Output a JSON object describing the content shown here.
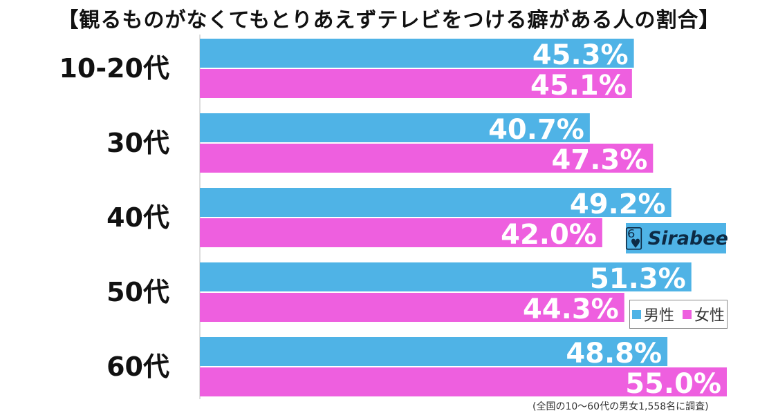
{
  "title": "【観るものがなくてもとりあえずテレビをつける癖がある人の割合】",
  "footnote": "(全国の10～60代の男女1,558名に調査)",
  "logo_text": "Sirabee",
  "colors": {
    "male": "#4fb3e6",
    "female": "#ee5fdf"
  },
  "chart_data": {
    "type": "bar",
    "orientation": "horizontal",
    "title": "【観るものがなくてもとりあえずテレビをつける癖がある人の割合】",
    "categories": [
      "10-20代",
      "30代",
      "40代",
      "50代",
      "60代"
    ],
    "series": [
      {
        "name": "男性",
        "values": [
          45.3,
          40.7,
          49.2,
          51.3,
          48.8
        ],
        "labels": [
          "45.3%",
          "40.7%",
          "49.2%",
          "51.3%",
          "48.8%"
        ]
      },
      {
        "name": "女性",
        "values": [
          45.1,
          47.3,
          42.0,
          44.3,
          55.0
        ],
        "labels": [
          "45.1%",
          "47.3%",
          "42.0%",
          "44.3%",
          "55.0%"
        ]
      }
    ],
    "xlim": [
      0,
      55
    ],
    "legend": "right",
    "grid": false
  }
}
